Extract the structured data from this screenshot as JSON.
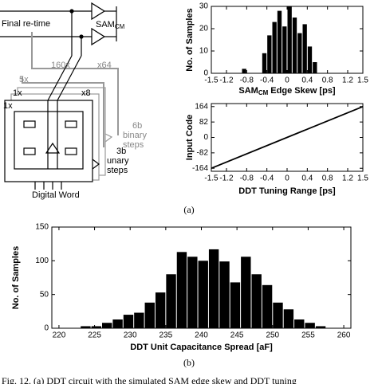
{
  "diagram": {
    "labels": [
      "Final re-time",
      "SAM",
      "CM",
      "160x",
      "x64",
      "5x",
      "1x",
      "x8",
      "1x",
      "6b",
      "binary",
      "steps",
      "3b",
      "unary",
      "steps",
      "Digital Word"
    ]
  },
  "chart_data": [
    {
      "type": "histogram",
      "ylabel": "No. of Samples",
      "xlabel": [
        "SAM",
        "CM",
        "Edge Skew [ps]"
      ],
      "bins": [
        -0.9,
        -0.8,
        -0.7,
        -0.6,
        -0.5,
        -0.4,
        -0.3,
        -0.2,
        -0.1,
        0,
        0.1,
        0.2,
        0.3,
        0.4,
        0.5,
        0.6,
        0.7
      ],
      "values": [
        2,
        0,
        0,
        0,
        9,
        17,
        23,
        28,
        21,
        30,
        25,
        18,
        22,
        12,
        5,
        0
      ],
      "color": "#000000",
      "xlim": [
        -1.5,
        1.5
      ],
      "xticks": [
        -1.5,
        -1.2,
        -0.8,
        -0.4,
        0,
        0.4,
        0.8,
        1.2,
        1.5
      ],
      "ylim": [
        0,
        30
      ],
      "yticks": [
        0,
        10,
        20,
        30
      ]
    },
    {
      "type": "line",
      "ylabel": "Input Code",
      "xlabel": "DDT Tuning Range [ps]",
      "x": [
        -1.5,
        1.5
      ],
      "values": [
        -164,
        164
      ],
      "color": "#000000",
      "xlim": [
        -1.5,
        1.5
      ],
      "xticks": [
        -1.5,
        -1.2,
        -0.8,
        -0.4,
        0,
        0.4,
        0.8,
        1.2,
        1.5
      ],
      "ylim": [
        -180,
        180
      ],
      "yticks": [
        -164,
        -82,
        0,
        82,
        164
      ]
    },
    {
      "type": "histogram",
      "ylabel": "No. of Samples",
      "xlabel": "DDT Unit Capacitance Spread [aF]",
      "bins": [
        223,
        224.5,
        226,
        227.5,
        229,
        230.5,
        232,
        233.5,
        235,
        236.5,
        238,
        239.5,
        241,
        242.5,
        244,
        245.5,
        247,
        248.5,
        250,
        251.5,
        253,
        254.5,
        256,
        257.5
      ],
      "values": [
        3,
        3,
        8,
        13,
        20,
        23,
        38,
        53,
        80,
        113,
        106,
        100,
        117,
        99,
        68,
        106,
        80,
        64,
        38,
        28,
        13,
        8,
        3
      ],
      "color": "#000000",
      "xlim": [
        219,
        261
      ],
      "xticks": [
        220,
        225,
        230,
        235,
        240,
        245,
        250,
        255,
        260
      ],
      "ylim": [
        0,
        150
      ],
      "yticks": [
        0,
        50,
        100,
        150
      ]
    }
  ],
  "caption": {
    "a": "(a)",
    "b": "(b)",
    "text": "Fig. 12.   (a) DDT circuit with the simulated SAM edge skew and DDT tuning"
  }
}
